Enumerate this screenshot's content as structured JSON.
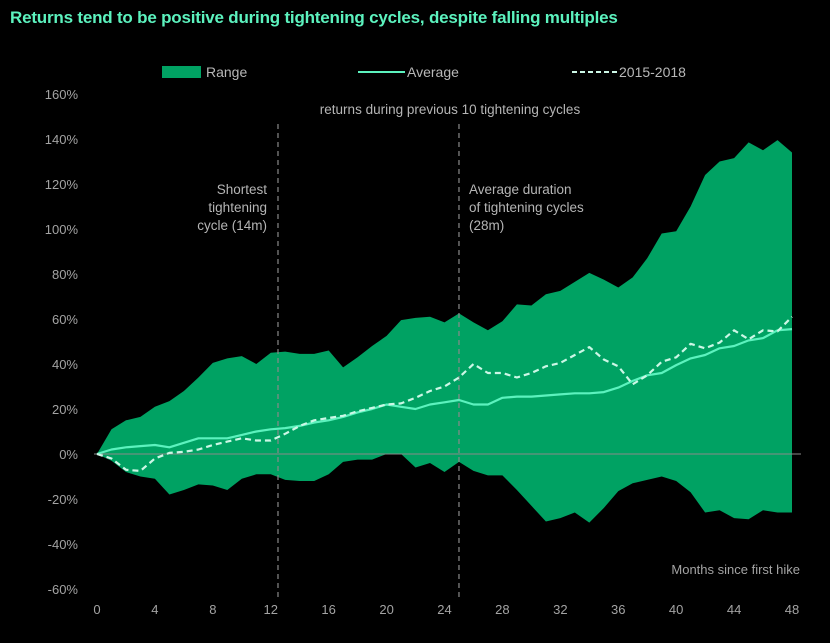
{
  "colors": {
    "title": "#5cf2be",
    "range": "#00a263",
    "average": "#5cf2be",
    "dashed": "#ccf7e6",
    "zero_line": "#8a8a8a",
    "ref_line": "#8a8a8a",
    "text": "#a3a3a3"
  },
  "chart_data": {
    "type": "area",
    "title": "Returns tend to be positive during tightening cycles, despite falling multiples",
    "subtitle": "returns during previous 10 tightening cycles",
    "xlabel": "Months since first hike",
    "ylabel": "",
    "xlim": [
      0,
      48
    ],
    "ylim": [
      -60,
      160
    ],
    "xticks": [
      0,
      4,
      8,
      12,
      16,
      20,
      24,
      28,
      32,
      36,
      40,
      44,
      48
    ],
    "yticks": [
      -60,
      -40,
      -20,
      0,
      20,
      40,
      60,
      80,
      100,
      120,
      140,
      160
    ],
    "ytick_labels": [
      "-60%",
      "-40%",
      "-20%",
      "0%",
      "20%",
      "40%",
      "60%",
      "80%",
      "100%",
      "120%",
      "140%",
      "160%"
    ],
    "grid": false,
    "legend": {
      "position": "top",
      "entries": [
        {
          "label": "Range",
          "style": "area"
        },
        {
          "label": "Average",
          "style": "solid-line"
        },
        {
          "label": "2015-2018",
          "style": "dashed-line"
        }
      ]
    },
    "x": [
      0,
      1,
      2,
      3,
      4,
      5,
      6,
      7,
      8,
      9,
      10,
      11,
      12,
      13,
      14,
      15,
      16,
      17,
      18,
      19,
      20,
      21,
      22,
      23,
      24,
      25,
      26,
      27,
      28,
      29,
      30,
      31,
      32,
      33,
      34,
      35,
      36,
      37,
      38,
      39,
      40,
      41,
      42,
      43,
      44,
      45,
      46,
      47,
      48
    ],
    "series": [
      {
        "name": "Range (high)",
        "values": [
          0,
          11,
          15,
          16.5,
          21,
          23.5,
          28,
          34,
          40.5,
          42.5,
          43.5,
          40,
          45,
          45.5,
          44.5,
          44.5,
          46,
          38.5,
          43,
          48,
          52.5,
          59.5,
          60.5,
          61,
          58.5,
          62.5,
          58.5,
          55,
          59,
          66.5,
          66,
          71,
          72.5,
          76.5,
          80.5,
          77.5,
          74,
          78.5,
          87,
          98,
          99,
          110,
          124,
          130,
          131.5,
          138.5,
          135,
          139.5,
          134
        ]
      },
      {
        "name": "Range (low)",
        "values": [
          0,
          -3,
          -8,
          -10,
          -11,
          -18,
          -16,
          -13.5,
          -14,
          -16,
          -11,
          -9,
          -9,
          -11.5,
          -12,
          -12,
          -9,
          -3.5,
          -2.5,
          -2.5,
          0,
          0,
          -6,
          -4,
          -8,
          -3.5,
          -7.5,
          -9.5,
          -9.5,
          -16,
          -23,
          -30,
          -28.5,
          -26,
          -30.5,
          -24,
          -16.5,
          -13,
          -11.5,
          -10,
          -12,
          -17,
          -26,
          -25,
          -28.5,
          -29,
          -25,
          -26,
          -26
        ]
      },
      {
        "name": "Average",
        "values": [
          0,
          2,
          3,
          3.5,
          4,
          3,
          5,
          7,
          7,
          7,
          8.5,
          10,
          11,
          11.5,
          12.5,
          14,
          15,
          16.5,
          18.5,
          20,
          22,
          21,
          20,
          22,
          23,
          24,
          22,
          22,
          25,
          25.5,
          25.5,
          26,
          26.5,
          27,
          27,
          27.5,
          29.5,
          32.5,
          35,
          36,
          39.5,
          42.5,
          44,
          47,
          48,
          50.5,
          51.5,
          55,
          55.5
        ]
      },
      {
        "name": "2015-2018",
        "values": [
          0,
          -2,
          -7,
          -7.5,
          -2,
          0.5,
          1,
          2,
          4,
          5.5,
          7,
          6,
          6,
          9,
          12.5,
          15,
          16,
          17,
          19,
          20.5,
          22,
          22.5,
          25,
          28,
          30,
          34,
          40,
          36,
          36,
          34,
          36,
          39,
          40.5,
          44,
          47.5,
          42,
          39,
          31,
          35,
          41,
          43,
          49,
          47,
          49.5,
          55,
          51,
          55,
          54.5,
          61
        ]
      }
    ],
    "annotations": [
      {
        "x": 12.5,
        "lines": [
          "Shortest",
          "tightening",
          "cycle (14m)"
        ],
        "align": "right"
      },
      {
        "x": 25,
        "lines": [
          "Average duration",
          "of tightening cycles",
          "(28m)"
        ],
        "align": "left"
      }
    ],
    "reference_lines_x": [
      12.5,
      25
    ]
  }
}
